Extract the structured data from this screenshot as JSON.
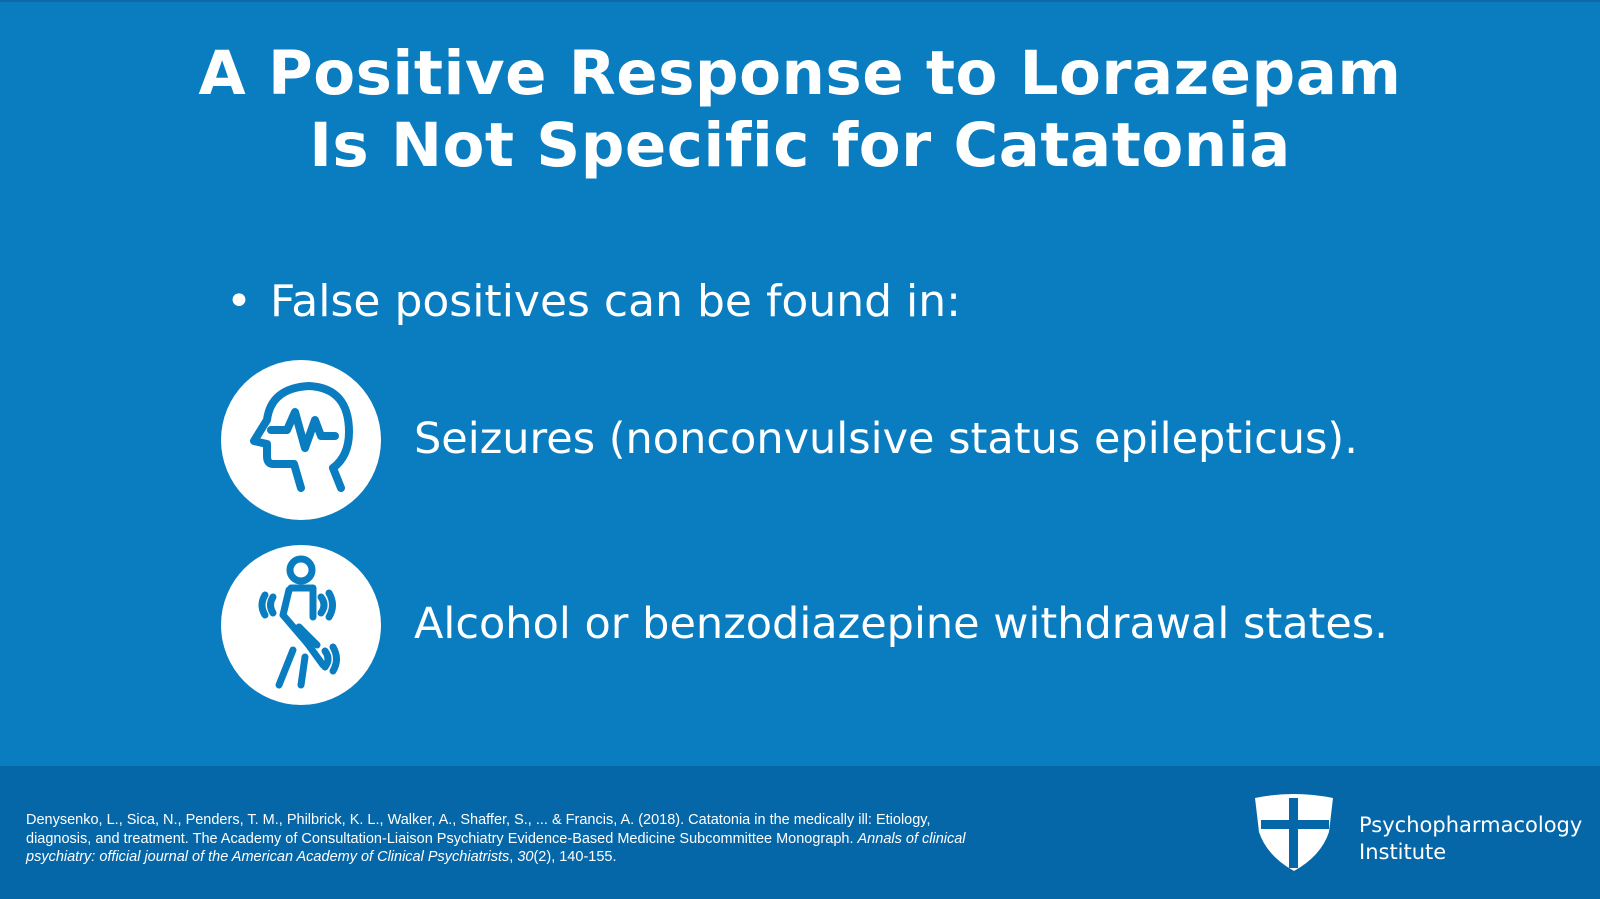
{
  "slide": {
    "title_line1": "A Positive Response to Lorazepam",
    "title_line2": "Is Not Specific for Catatonia",
    "bullet_symbol": "•",
    "bullet_text": "False positives can be found in:",
    "items": [
      {
        "icon": "head-seizure-icon",
        "text": "Seizures (nonconvulsive status epilepticus)."
      },
      {
        "icon": "tremor-person-icon",
        "text": "Alcohol or benzodiazepine withdrawal states."
      }
    ]
  },
  "footer": {
    "citation_part1": "Denysenko, L., Sica, N., Penders, T. M., Philbrick, K. L., Walker, A., Shaffer, S., ... & Francis, A. (2018). Catatonia in the medically ill: Etiology, diagnosis, and treatment. The Academy of Consultation-Liaison Psychiatry Evidence-Based Medicine Subcommittee Monograph. ",
    "citation_journal": "Annals of clinical psychiatry: official journal of the American Academy of Clinical Psychiatrists",
    "citation_sep": ", ",
    "citation_volume": "30",
    "citation_part2": "(2), 140-155.",
    "logo_icon": "shield-icon",
    "brand_line1": "Psychopharmacology",
    "brand_line2": "Institute"
  },
  "colors": {
    "background": "#0a7cc0",
    "footer": "#0667a8",
    "text": "#ffffff"
  }
}
